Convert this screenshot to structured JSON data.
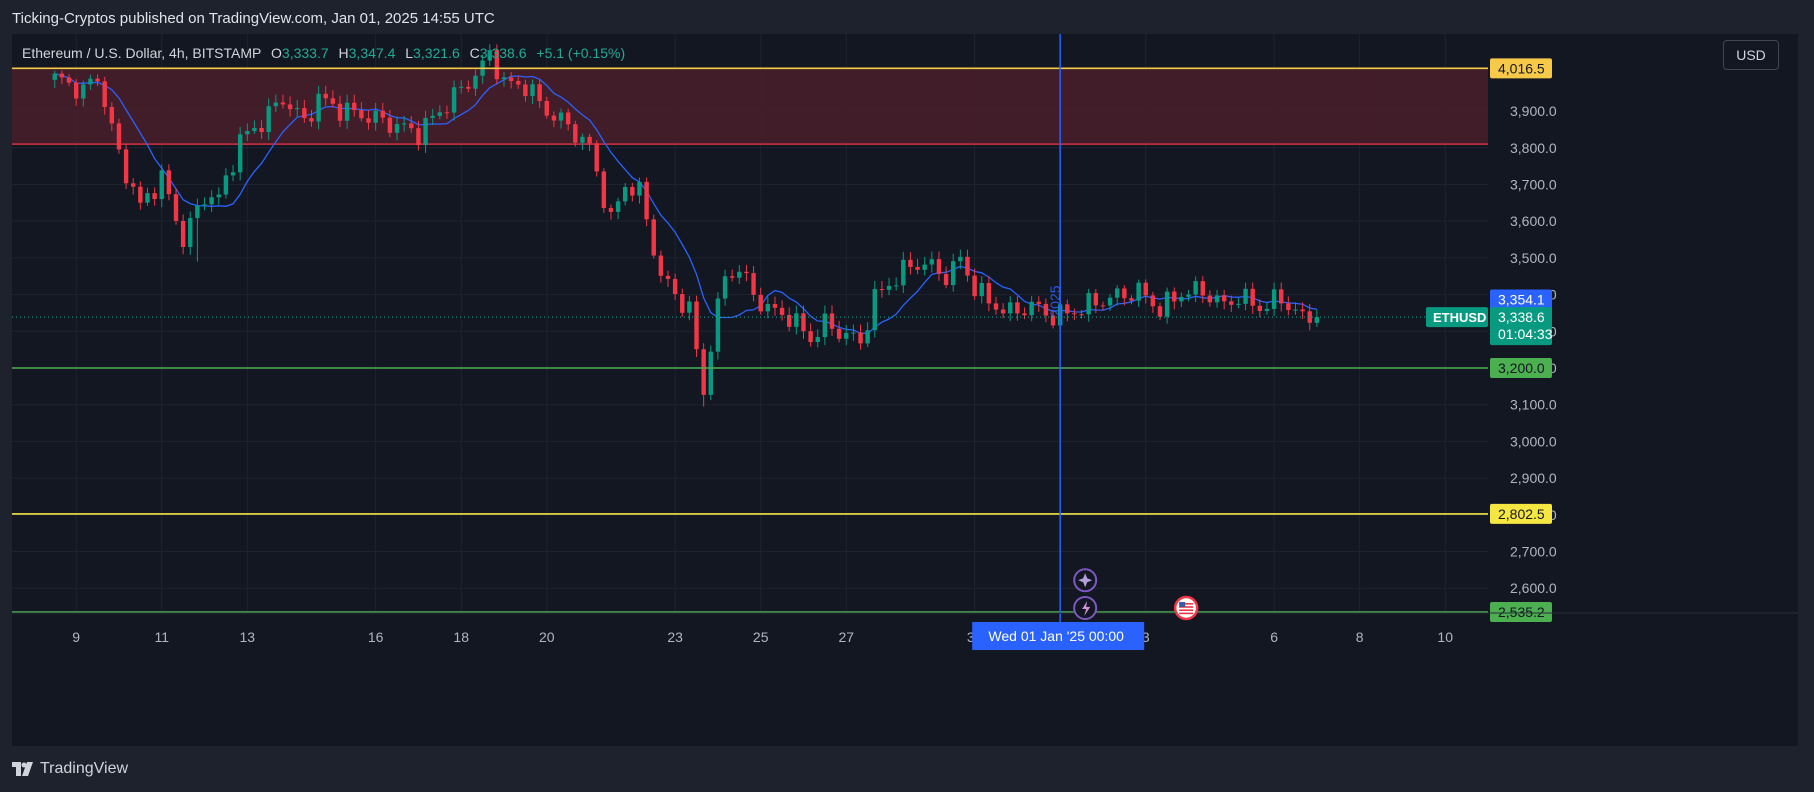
{
  "attribution": "Ticking-Cryptos published on TradingView.com, Jan 01, 2025 14:55 UTC",
  "legend": {
    "symbol": "Ethereum / U.S. Dollar, 4h, BITSTAMP",
    "open_label": "O",
    "open": "3,333.7",
    "high_label": "H",
    "high": "3,347.4",
    "low_label": "L",
    "low": "3,321.6",
    "close_label": "C",
    "close": "3,338.6",
    "change": "+5.1 (+0.15%)"
  },
  "currency_button": "USD",
  "footer_brand": "TradingView",
  "colors": {
    "up": "#089981",
    "down": "#f23645",
    "ma": "#2962ff",
    "zone_fill": "#4a1f2a",
    "zone_edge_top": "#f7c948",
    "zone_edge_bottom": "#f23645",
    "support_green": "#4caf50",
    "support_yellow": "#f5e642",
    "cursor": "#2962ff"
  },
  "chart_data": {
    "type": "candlestick",
    "timeframe": "4h",
    "y_range": [
      2535.2,
      4110
    ],
    "y_ticks": [
      2600,
      2700,
      2800,
      2900,
      3000,
      3100,
      3200,
      3300,
      3400,
      3500,
      3600,
      3700,
      3800,
      3900
    ],
    "y_tick_labels": [
      "2,600.0",
      "2,700.0",
      "2,800.0",
      "2,900.0",
      "3,000.0",
      "3,100.0",
      "3,200.0",
      "3,300.0",
      "3,400.0",
      "3,500.0",
      "3,600.0",
      "3,700.0",
      "3,800.0",
      "3,900.0"
    ],
    "x_start": "Dec 08 '24 12:00",
    "x_ticks": [
      {
        "label": "9",
        "day": 0.5
      },
      {
        "label": "11",
        "day": 2.5
      },
      {
        "label": "13",
        "day": 4.5
      },
      {
        "label": "16",
        "day": 7.5
      },
      {
        "label": "18",
        "day": 9.5
      },
      {
        "label": "20",
        "day": 11.5
      },
      {
        "label": "23",
        "day": 14.5
      },
      {
        "label": "25",
        "day": 16.5
      },
      {
        "label": "27",
        "day": 18.5
      },
      {
        "label": "30",
        "day": 21.5
      },
      {
        "label": "3",
        "day": 25.5
      },
      {
        "label": "6",
        "day": 28.5
      },
      {
        "label": "8",
        "day": 30.5
      },
      {
        "label": "10",
        "day": 32.5
      }
    ],
    "x_day_range": [
      -1.0,
      33.5
    ],
    "cursor": {
      "label": "Wed 01 Jan '25   00:00",
      "day": 23.5,
      "vertical_label": "2025"
    },
    "zone": {
      "top": 4016.5,
      "bottom": 3810
    },
    "horizontal_levels": [
      {
        "price": 4016.5,
        "label": "4,016.5",
        "color": "#f7c948",
        "kind": "resistance"
      },
      {
        "price": 3200.0,
        "label": "3,200.0",
        "color": "#4caf50",
        "kind": "support"
      },
      {
        "price": 2802.5,
        "label": "2,802.5",
        "color": "#f5e642",
        "kind": "support"
      },
      {
        "price": 2535.2,
        "label": "2,535.2",
        "color": "#4caf50",
        "kind": "support"
      }
    ],
    "current": {
      "symbol": "ETHUSD",
      "price": 3338.6,
      "label": "3,338.6",
      "countdown": "01:04:33"
    },
    "ma": {
      "value": 3354.1,
      "label": "3,354.1"
    },
    "anchors": [
      [
        0,
        3990
      ],
      [
        4,
        3955
      ],
      [
        6,
        3995
      ],
      [
        9,
        3780
      ],
      [
        12,
        3640
      ],
      [
        15,
        3720
      ],
      [
        18,
        3550
      ],
      [
        21,
        3670
      ],
      [
        23,
        3660
      ],
      [
        26,
        3820
      ],
      [
        29,
        3870
      ],
      [
        32,
        3935
      ],
      [
        35,
        3870
      ],
      [
        37,
        3935
      ],
      [
        40,
        3905
      ],
      [
        45,
        3880
      ],
      [
        48,
        3860
      ],
      [
        51,
        3840
      ],
      [
        54,
        3900
      ],
      [
        57,
        3960
      ],
      [
        60,
        4020
      ],
      [
        61,
        4060
      ],
      [
        63,
        3975
      ],
      [
        66,
        3970
      ],
      [
        69,
        3900
      ],
      [
        72,
        3860
      ],
      [
        75,
        3800
      ],
      [
        78,
        3600
      ],
      [
        80,
        3700
      ],
      [
        82,
        3680
      ],
      [
        85,
        3450
      ],
      [
        87,
        3400
      ],
      [
        89,
        3360
      ],
      [
        91,
        3130
      ],
      [
        92,
        3270
      ],
      [
        94,
        3450
      ],
      [
        96,
        3470
      ],
      [
        98,
        3400
      ],
      [
        100,
        3360
      ],
      [
        103,
        3340
      ],
      [
        106,
        3280
      ],
      [
        108,
        3320
      ],
      [
        111,
        3290
      ],
      [
        113,
        3270
      ],
      [
        115,
        3390
      ],
      [
        117,
        3430
      ],
      [
        120,
        3480
      ],
      [
        122,
        3485
      ],
      [
        125,
        3450
      ],
      [
        127,
        3495
      ],
      [
        129,
        3420
      ],
      [
        131,
        3380
      ],
      [
        134,
        3350
      ],
      [
        137,
        3370
      ],
      [
        140,
        3340
      ],
      [
        143,
        3355
      ],
      [
        146,
        3380
      ],
      [
        149,
        3395
      ],
      [
        152,
        3410
      ],
      [
        155,
        3360
      ],
      [
        158,
        3405
      ],
      [
        161,
        3410
      ],
      [
        164,
        3370
      ],
      [
        166,
        3395
      ],
      [
        169,
        3365
      ],
      [
        172,
        3390
      ],
      [
        175,
        3335
      ],
      [
        177,
        3338.6
      ]
    ],
    "big_drop_index": 91,
    "big_drop_low": 3095
  }
}
